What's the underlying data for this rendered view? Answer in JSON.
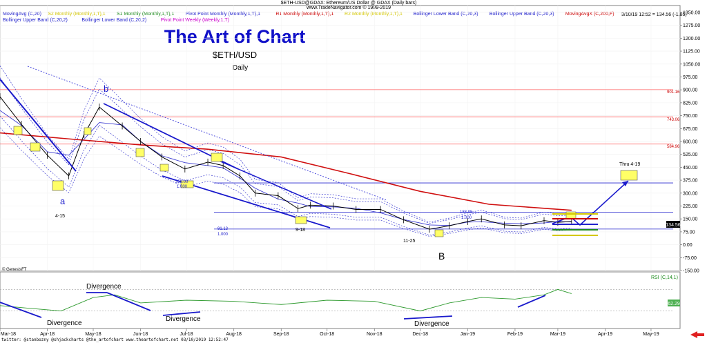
{
  "header": {
    "line1": "$ETH-USD@GDAX: Ethereum/US Dollar @ GDAX  (Daily bars)",
    "line2": "www.TradeNavigator.com © 1999-2019",
    "quote": "3/10/19 12:52 = 134.56 (-1.85)"
  },
  "legend_row1": [
    {
      "label": "MovingAvg (C,20)",
      "color": "#2222cc"
    },
    {
      "label": "S2 Monthly (Monthly,1,T),1",
      "color": "#d4c700"
    },
    {
      "label": "S1 Monthly (Monthly,1,T),1",
      "color": "#1a8a1a"
    },
    {
      "label": "Pivot Point Monthly (Monthly,1,T),1",
      "color": "#2222cc"
    },
    {
      "label": "R1 Monthly (Monthly,1,T),1",
      "color": "#cc0000"
    },
    {
      "label": "R2 Monthly (Monthly,1,T),1",
      "color": "#d4c700"
    },
    {
      "label": "Bollinger Lower Band (C,20,3)",
      "color": "#2222cc"
    },
    {
      "label": "Bollinger Upper Band (C,20,3)",
      "color": "#2222cc"
    },
    {
      "label": "MovingAvgX (C,200,F)",
      "color": "#cc0000"
    }
  ],
  "legend_row2": [
    {
      "label": "Bollinger Upper Band (C,20,2)",
      "color": "#2222cc"
    },
    {
      "label": "Bollinger Lower Band (C,20,2)",
      "color": "#2222cc"
    },
    {
      "label": "Pivot Point Weekly (Weekly,1,T)",
      "color": "#cc00cc"
    }
  ],
  "title": "The Art of Chart",
  "symbol": "$ETH/USD",
  "timeframe": "Daily",
  "annotations": {
    "wave_a": "a",
    "wave_b_small": "b",
    "wave_B": "B",
    "date_4_15": "4-15",
    "date_9_18": "9-18",
    "date_11_25": "11-25",
    "target": "Thru 4-19",
    "fib_top_value": "359.00",
    "fib_top_ratio": "1.000",
    "fib_bottom_value": "91.13",
    "fib_bottom_ratio": "1.000",
    "fib_mid_value": "188.95",
    "fib_mid_ratio": "1.000",
    "level_901": "901.16",
    "level_743": "743.06",
    "level_584": "584.96",
    "genesis": "© GenesisFT",
    "divergence_1": "Divergence",
    "divergence_2": "Divergence",
    "divergence_3": "Divergence",
    "divergence_4": "Divergence",
    "rsi_label": "RSI (C,14,1)",
    "rsi_value": "62.29",
    "price_badge": "134.56"
  },
  "footer": "twitter: @stanbozny @shjackcharts @the_artofchart   www.theartofchart.net   03/10/2019 12:52:47",
  "chart_data": {
    "type": "line",
    "title": "The Art of Chart",
    "x_ticks": [
      "Mar-18",
      "Apr-18",
      "May-18",
      "Jun-18",
      "Jul-18",
      "Aug-18",
      "Sep-18",
      "Oct-18",
      "Nov-18",
      "Dec-18",
      "Jan-19",
      "Feb-19",
      "Mar-19",
      "Apr-19",
      "May-19"
    ],
    "y_ticks": [
      1350,
      1275,
      1200,
      1125,
      1050,
      975,
      900,
      825,
      750,
      675,
      600,
      525,
      450,
      375,
      300,
      225,
      150,
      75,
      0,
      -75,
      -150
    ],
    "ylim": [
      -150,
      1390
    ],
    "horizontal_levels": [
      {
        "value": 901.16,
        "color": "#ff6060"
      },
      {
        "value": 743.06,
        "color": "#ff6060"
      },
      {
        "value": 584.96,
        "color": "#ff6060"
      },
      {
        "value": 359.0,
        "color": "#2222cc"
      },
      {
        "value": 188.95,
        "color": "#2222cc"
      },
      {
        "value": 91.13,
        "color": "#2222cc"
      }
    ],
    "series": [
      {
        "name": "$ETH-USD",
        "x": [
          "2018-03-01",
          "2018-03-15",
          "2018-04-01",
          "2018-04-15",
          "2018-04-25",
          "2018-05-05",
          "2018-05-20",
          "2018-06-01",
          "2018-06-15",
          "2018-06-30",
          "2018-07-15",
          "2018-07-25",
          "2018-08-05",
          "2018-08-15",
          "2018-08-30",
          "2018-09-12",
          "2018-09-20",
          "2018-10-05",
          "2018-10-20",
          "2018-11-05",
          "2018-11-20",
          "2018-12-07",
          "2018-12-20",
          "2019-01-01",
          "2019-01-10",
          "2019-01-25",
          "2019-02-05",
          "2019-02-20",
          "2019-03-01",
          "2019-03-10"
        ],
        "y": [
          860,
          700,
          520,
          400,
          640,
          800,
          690,
          600,
          510,
          440,
          480,
          460,
          400,
          300,
          285,
          210,
          230,
          225,
          205,
          205,
          145,
          90,
          110,
          135,
          150,
          115,
          110,
          140,
          130,
          134.56
        ]
      },
      {
        "name": "MovingAvgX (C,200,F)",
        "x": [
          "2018-03-01",
          "2018-04-15",
          "2018-06-01",
          "2018-07-15",
          "2018-09-01",
          "2018-10-15",
          "2018-12-01",
          "2019-01-15",
          "2019-03-10"
        ],
        "y": [
          650,
          615,
          580,
          555,
          510,
          415,
          310,
          235,
          200
        ]
      }
    ],
    "rsi": {
      "label": "RSI (C,14,1)",
      "x": [
        "2018-03-01",
        "2018-03-20",
        "2018-04-10",
        "2018-05-01",
        "2018-05-15",
        "2018-06-01",
        "2018-07-01",
        "2018-08-01",
        "2018-09-01",
        "2018-10-01",
        "2018-11-01",
        "2018-12-01",
        "2018-12-20",
        "2019-01-10",
        "2019-02-01",
        "2019-02-20",
        "2019-03-01",
        "2019-03-10"
      ],
      "y": [
        40,
        35,
        30,
        55,
        60,
        45,
        50,
        48,
        42,
        50,
        48,
        30,
        45,
        55,
        52,
        60,
        70,
        62.29
      ]
    }
  }
}
